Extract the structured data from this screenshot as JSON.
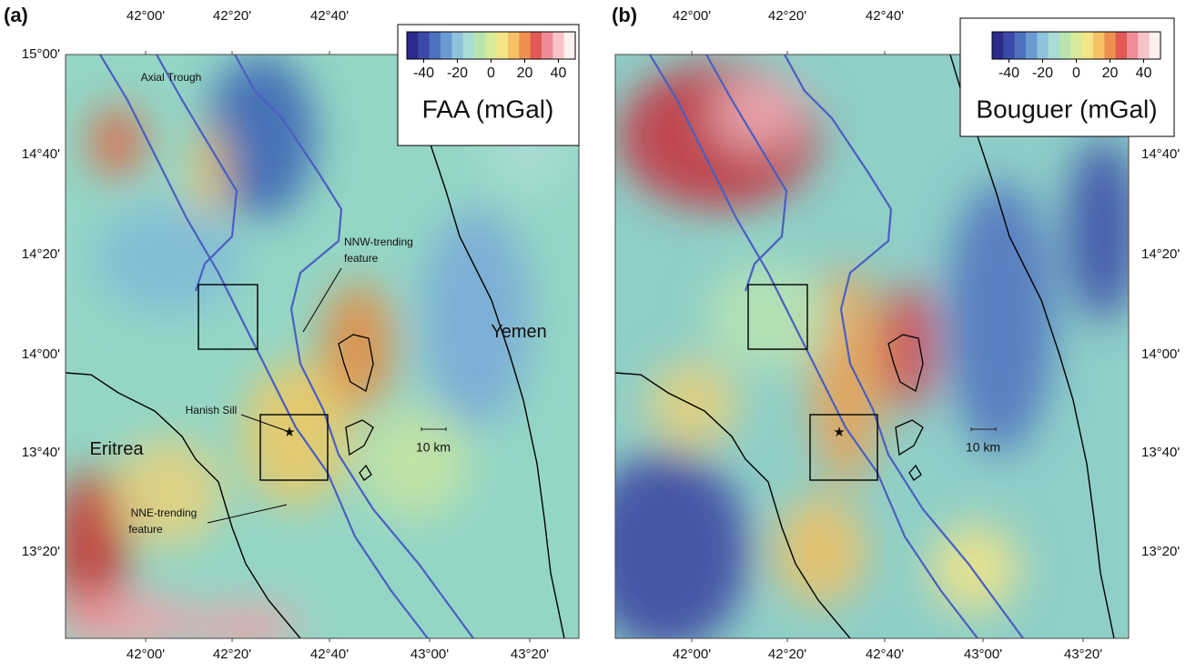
{
  "panels": [
    {
      "label": "(a)",
      "top_ticks": [
        "42°00'",
        "42°20'",
        "42°40'"
      ],
      "bottom_ticks": [
        "42°00'",
        "42°20'",
        "42°40'",
        "43°00'",
        "43°20'"
      ],
      "side_ticks": [
        "15°00'",
        "14°40'",
        "14°20'",
        "14°00'",
        "13°40'",
        "13°20'"
      ],
      "colorbar": {
        "ticks": [
          -40,
          -20,
          0,
          20,
          40
        ],
        "range": [
          -50,
          50
        ],
        "label": "FAA (mGal)"
      },
      "annotations": [
        [
          "Axial Trough"
        ],
        [
          "NNW-trending",
          "feature"
        ],
        [
          "Hanish Sill"
        ],
        [
          "Yemen"
        ],
        [
          "Eritrea"
        ],
        [
          "NNE-trending",
          "feature"
        ]
      ],
      "scale_bar": "10 km"
    },
    {
      "label": "(b)",
      "top_ticks": [
        "42°00'",
        "42°20'",
        "42°40'"
      ],
      "bottom_ticks": [
        "42°00'",
        "42°20'",
        "42°40'",
        "43°00'",
        "43°20'"
      ],
      "side_ticks": [
        "14°40'",
        "14°20'",
        "14°00'",
        "13°40'",
        "13°20'"
      ],
      "colorbar": {
        "ticks": [
          -40,
          -20,
          0,
          20,
          40
        ],
        "range": [
          -50,
          50
        ],
        "label": "Bouguer (mGal)"
      },
      "scale_bar": "10 km"
    }
  ]
}
